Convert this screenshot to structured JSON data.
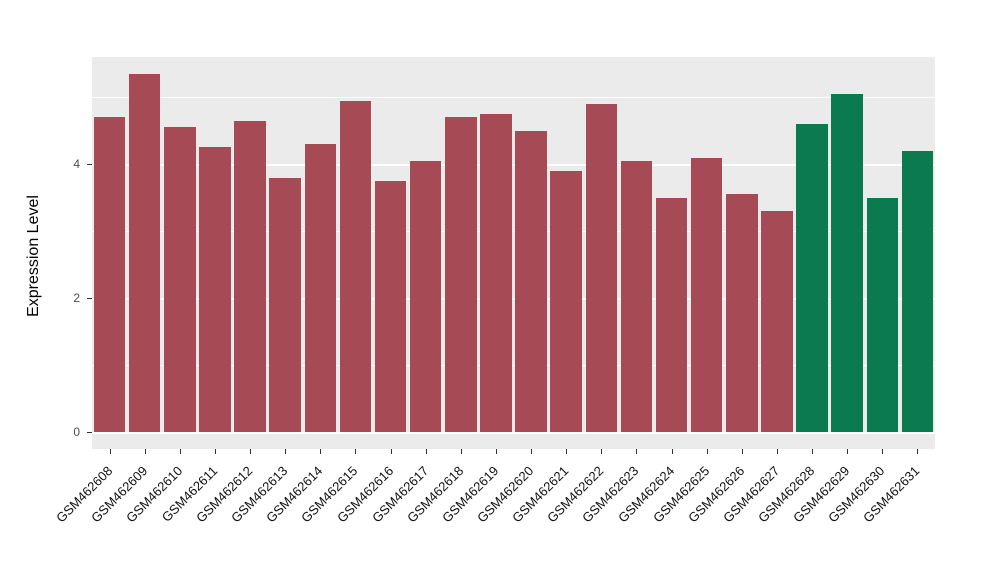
{
  "chart_data": {
    "type": "bar",
    "title": "",
    "xlabel": "",
    "ylabel": "Expression Level",
    "legend_position": "none",
    "grid": "on",
    "panel_background": "#EBEBEB",
    "grid_color": "#FFFFFF",
    "ylim": [
      -0.25,
      5.6
    ],
    "yticks": [
      0,
      2,
      4
    ],
    "minor_ticks": [
      1,
      3,
      5
    ],
    "categories": [
      "GSM462608",
      "GSM462609",
      "GSM462610",
      "GSM462611",
      "GSM462612",
      "GSM462613",
      "GSM462614",
      "GSM462615",
      "GSM462616",
      "GSM462617",
      "GSM462618",
      "GSM462619",
      "GSM462620",
      "GSM462621",
      "GSM462622",
      "GSM462623",
      "GSM462624",
      "GSM462625",
      "GSM462626",
      "GSM462627",
      "GSM462628",
      "GSM462629",
      "GSM462630",
      "GSM462631"
    ],
    "values": [
      4.7,
      5.35,
      4.55,
      4.25,
      4.65,
      3.8,
      4.3,
      4.95,
      3.75,
      4.05,
      4.7,
      4.75,
      4.5,
      3.9,
      4.9,
      4.05,
      3.5,
      4.1,
      3.55,
      3.3,
      4.6,
      5.05,
      3.5,
      4.2
    ],
    "groups": [
      "maroon",
      "maroon",
      "maroon",
      "maroon",
      "maroon",
      "maroon",
      "maroon",
      "maroon",
      "maroon",
      "maroon",
      "maroon",
      "maroon",
      "maroon",
      "maroon",
      "maroon",
      "maroon",
      "maroon",
      "maroon",
      "maroon",
      "maroon",
      "green",
      "green",
      "green",
      "green"
    ],
    "bar_colors": {
      "maroon": "#A64A55",
      "green": "#0C7A50"
    }
  }
}
